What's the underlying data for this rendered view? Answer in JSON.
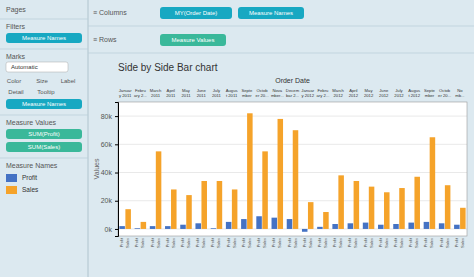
{
  "chart_data": {
    "type": "bar",
    "title": "Side by Side Bar chart",
    "xlabel": "Order Date",
    "ylabel": "Values",
    "categories": [
      "Januar\ny 2011",
      "Febru\nary 2...",
      "March\n2011",
      "April\n2011",
      "May\n2011",
      "June\n2011",
      "July\n2011",
      "Augus\nt 2011",
      "Septe\nmber",
      "Octob\ner 20...",
      "Nova\nmber...",
      "Decem\nbar 2...",
      "Januar\ny 2012",
      "Febru\nary 2...",
      "March\n2012",
      "April\n2012",
      "May\n2012",
      "June\n2012",
      "July\n2012",
      "Augus\nt 2012",
      "Septe\nmber",
      "Octob\ner 20...",
      "No\nmb..."
    ],
    "series": [
      {
        "name": "Profit",
        "color": "#4472c4",
        "values": [
          2000,
          500,
          2000,
          2000,
          3000,
          4000,
          500,
          5000,
          7000,
          9000,
          8000,
          7000,
          -2000,
          1500,
          3500,
          4000,
          4500,
          3000,
          3500,
          4500,
          5000,
          4000,
          3000
        ]
      },
      {
        "name": "Sales",
        "color": "#f5a32a",
        "values": [
          14000,
          5000,
          55000,
          28000,
          24000,
          34000,
          34000,
          28000,
          82000,
          55000,
          78000,
          70000,
          19000,
          12000,
          38000,
          34000,
          30000,
          26000,
          29000,
          37000,
          65000,
          31000,
          15000
        ]
      }
    ],
    "ylim": [
      -5000,
      90000
    ],
    "yticks": [
      {
        "value": 0,
        "label": "0k"
      },
      {
        "value": 20000,
        "label": "20k"
      },
      {
        "value": 40000,
        "label": "40k"
      },
      {
        "value": 60000,
        "label": "60k"
      },
      {
        "value": 80000,
        "label": "80k"
      }
    ],
    "grid": true,
    "legend": "left",
    "annotations": [
      "Pages",
      "Filters",
      "Measure Names",
      "Marks",
      "Automatic",
      "Color",
      "Size",
      "Label",
      "Detail",
      "Tooltip",
      "Measure Names",
      "Measure Values",
      "SUM(Profit)",
      "SUM(Sales)",
      "Measure Names",
      "≡ Columns",
      "MY(Order Date)",
      "Measure Names",
      "≡ Rows",
      "Measure Values"
    ]
  }
}
